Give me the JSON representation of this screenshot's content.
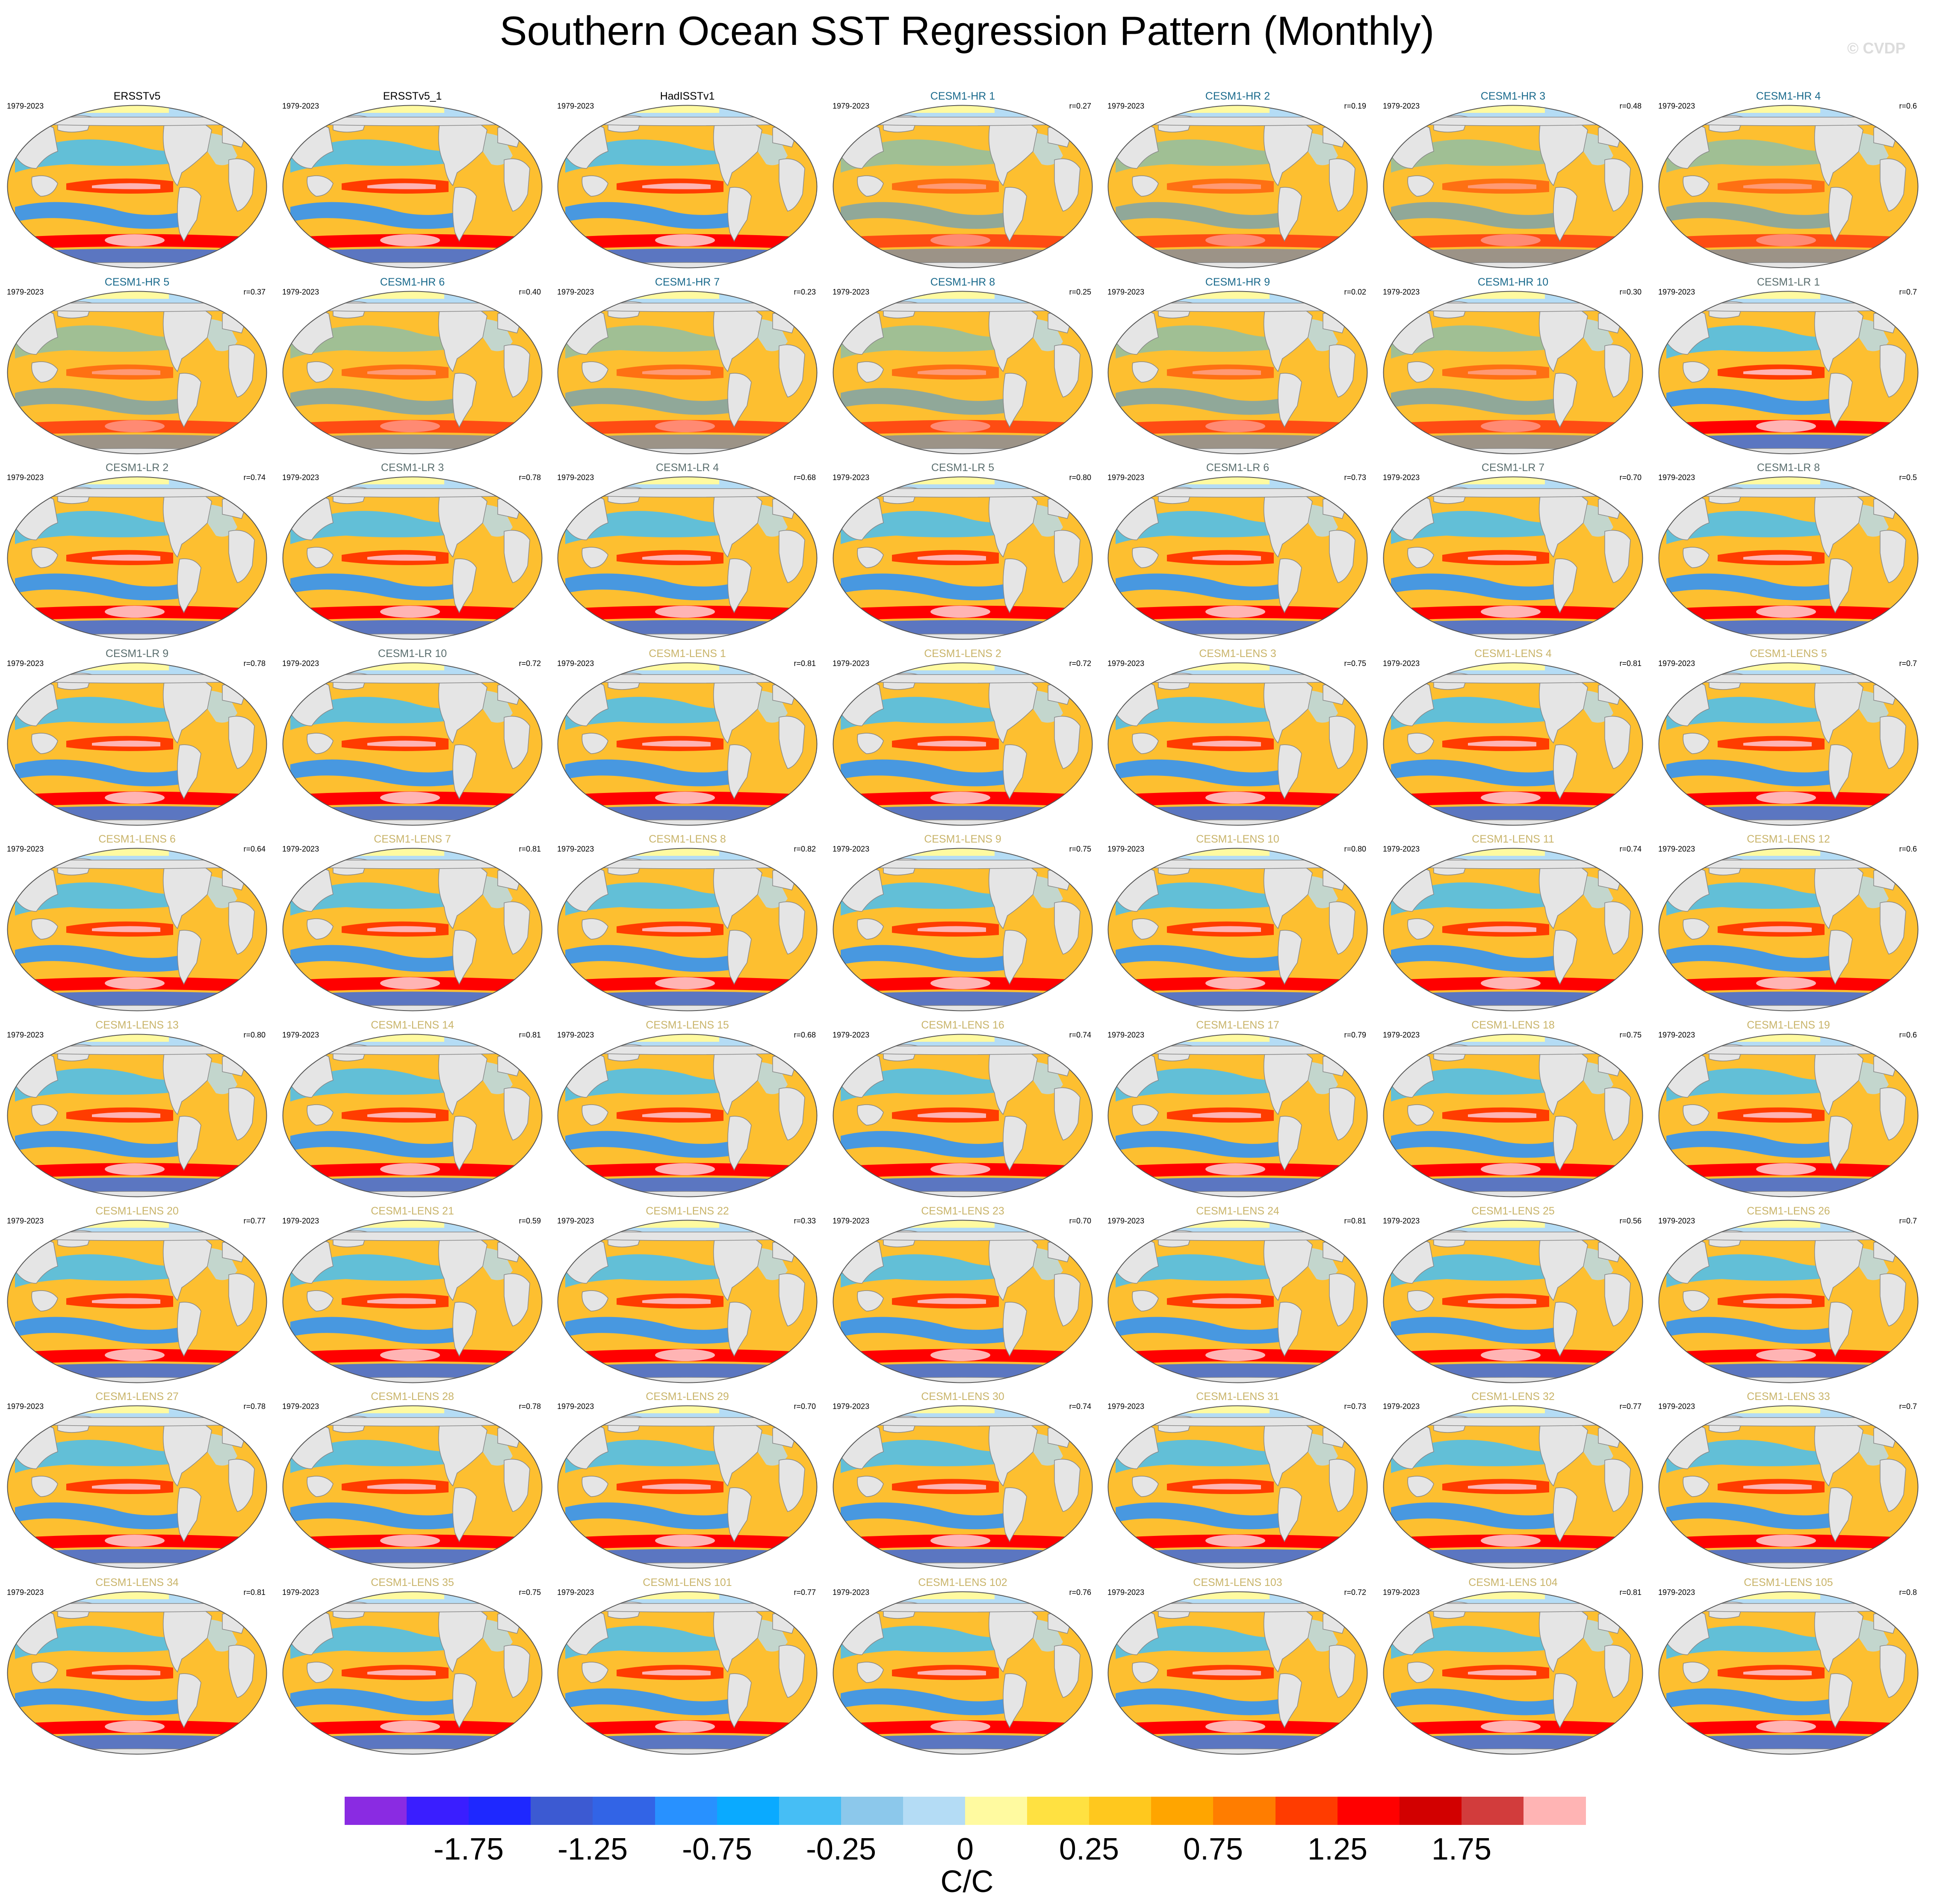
{
  "title": "Southern Ocean SST Regression Pattern (Monthly)",
  "watermark": "© CVDP",
  "period": "1979-2023",
  "title_colors": {
    "obs": "#000000",
    "hr": "#1a6a8c",
    "lr": "#5a6e6e",
    "lens": "#c9b46a"
  },
  "colors": {
    "ocean_base": "#fdbf30",
    "land": "#e5e5e5",
    "land_border": "#888888"
  },
  "panels": [
    {
      "name": "ERSSTv5",
      "group": "obs",
      "r": ""
    },
    {
      "name": "ERSSTv5_1",
      "group": "obs",
      "r": ""
    },
    {
      "name": "HadISSTv1",
      "group": "obs",
      "r": ""
    },
    {
      "name": "CESM1-HR 1",
      "group": "hr",
      "r": "r=0.27"
    },
    {
      "name": "CESM1-HR 2",
      "group": "hr",
      "r": "r=0.19"
    },
    {
      "name": "CESM1-HR 3",
      "group": "hr",
      "r": "r=0.48"
    },
    {
      "name": "CESM1-HR 4",
      "group": "hr",
      "r": "r=0.6"
    },
    {
      "name": "CESM1-HR 5",
      "group": "hr",
      "r": "r=0.37"
    },
    {
      "name": "CESM1-HR 6",
      "group": "hr",
      "r": "r=0.40"
    },
    {
      "name": "CESM1-HR 7",
      "group": "hr",
      "r": "r=0.23"
    },
    {
      "name": "CESM1-HR 8",
      "group": "hr",
      "r": "r=0.25"
    },
    {
      "name": "CESM1-HR 9",
      "group": "hr",
      "r": "r=0.02"
    },
    {
      "name": "CESM1-HR 10",
      "group": "hr",
      "r": "r=0.30"
    },
    {
      "name": "CESM1-LR 1",
      "group": "lr",
      "r": "r=0.7"
    },
    {
      "name": "CESM1-LR 2",
      "group": "lr",
      "r": "r=0.74"
    },
    {
      "name": "CESM1-LR 3",
      "group": "lr",
      "r": "r=0.78"
    },
    {
      "name": "CESM1-LR 4",
      "group": "lr",
      "r": "r=0.68"
    },
    {
      "name": "CESM1-LR 5",
      "group": "lr",
      "r": "r=0.80"
    },
    {
      "name": "CESM1-LR 6",
      "group": "lr",
      "r": "r=0.73"
    },
    {
      "name": "CESM1-LR 7",
      "group": "lr",
      "r": "r=0.70"
    },
    {
      "name": "CESM1-LR 8",
      "group": "lr",
      "r": "r=0.5"
    },
    {
      "name": "CESM1-LR 9",
      "group": "lr",
      "r": "r=0.78"
    },
    {
      "name": "CESM1-LR 10",
      "group": "lr",
      "r": "r=0.72"
    },
    {
      "name": "CESM1-LENS 1",
      "group": "lens",
      "r": "r=0.81"
    },
    {
      "name": "CESM1-LENS 2",
      "group": "lens",
      "r": "r=0.72"
    },
    {
      "name": "CESM1-LENS 3",
      "group": "lens",
      "r": "r=0.75"
    },
    {
      "name": "CESM1-LENS 4",
      "group": "lens",
      "r": "r=0.81"
    },
    {
      "name": "CESM1-LENS 5",
      "group": "lens",
      "r": "r=0.7"
    },
    {
      "name": "CESM1-LENS 6",
      "group": "lens",
      "r": "r=0.64"
    },
    {
      "name": "CESM1-LENS 7",
      "group": "lens",
      "r": "r=0.81"
    },
    {
      "name": "CESM1-LENS 8",
      "group": "lens",
      "r": "r=0.82"
    },
    {
      "name": "CESM1-LENS 9",
      "group": "lens",
      "r": "r=0.75"
    },
    {
      "name": "CESM1-LENS 10",
      "group": "lens",
      "r": "r=0.80"
    },
    {
      "name": "CESM1-LENS 11",
      "group": "lens",
      "r": "r=0.74"
    },
    {
      "name": "CESM1-LENS 12",
      "group": "lens",
      "r": "r=0.6"
    },
    {
      "name": "CESM1-LENS 13",
      "group": "lens",
      "r": "r=0.80"
    },
    {
      "name": "CESM1-LENS 14",
      "group": "lens",
      "r": "r=0.81"
    },
    {
      "name": "CESM1-LENS 15",
      "group": "lens",
      "r": "r=0.68"
    },
    {
      "name": "CESM1-LENS 16",
      "group": "lens",
      "r": "r=0.74"
    },
    {
      "name": "CESM1-LENS 17",
      "group": "lens",
      "r": "r=0.79"
    },
    {
      "name": "CESM1-LENS 18",
      "group": "lens",
      "r": "r=0.75"
    },
    {
      "name": "CESM1-LENS 19",
      "group": "lens",
      "r": "r=0.6"
    },
    {
      "name": "CESM1-LENS 20",
      "group": "lens",
      "r": "r=0.77"
    },
    {
      "name": "CESM1-LENS 21",
      "group": "lens",
      "r": "r=0.59"
    },
    {
      "name": "CESM1-LENS 22",
      "group": "lens",
      "r": "r=0.33"
    },
    {
      "name": "CESM1-LENS 23",
      "group": "lens",
      "r": "r=0.70"
    },
    {
      "name": "CESM1-LENS 24",
      "group": "lens",
      "r": "r=0.81"
    },
    {
      "name": "CESM1-LENS 25",
      "group": "lens",
      "r": "r=0.56"
    },
    {
      "name": "CESM1-LENS 26",
      "group": "lens",
      "r": "r=0.7"
    },
    {
      "name": "CESM1-LENS 27",
      "group": "lens",
      "r": "r=0.78"
    },
    {
      "name": "CESM1-LENS 28",
      "group": "lens",
      "r": "r=0.78"
    },
    {
      "name": "CESM1-LENS 29",
      "group": "lens",
      "r": "r=0.70"
    },
    {
      "name": "CESM1-LENS 30",
      "group": "lens",
      "r": "r=0.74"
    },
    {
      "name": "CESM1-LENS 31",
      "group": "lens",
      "r": "r=0.73"
    },
    {
      "name": "CESM1-LENS 32",
      "group": "lens",
      "r": "r=0.77"
    },
    {
      "name": "CESM1-LENS 33",
      "group": "lens",
      "r": "r=0.7"
    },
    {
      "name": "CESM1-LENS 34",
      "group": "lens",
      "r": "r=0.81"
    },
    {
      "name": "CESM1-LENS 35",
      "group": "lens",
      "r": "r=0.75"
    },
    {
      "name": "CESM1-LENS 101",
      "group": "lens",
      "r": "r=0.77"
    },
    {
      "name": "CESM1-LENS 102",
      "group": "lens",
      "r": "r=0.76"
    },
    {
      "name": "CESM1-LENS 103",
      "group": "lens",
      "r": "r=0.72"
    },
    {
      "name": "CESM1-LENS 104",
      "group": "lens",
      "r": "r=0.81"
    },
    {
      "name": "CESM1-LENS 105",
      "group": "lens",
      "r": "r=0.8"
    }
  ],
  "colorbar": {
    "colors": [
      "#8a2be2",
      "#3a1eff",
      "#1e28ff",
      "#3c5ad2",
      "#3264e6",
      "#2891ff",
      "#0aaaff",
      "#46bef5",
      "#8cc8eb",
      "#b4dcf5",
      "#fffaa0",
      "#ffe141",
      "#ffc81e",
      "#ffa500",
      "#ff7d00",
      "#ff3c00",
      "#ff0000",
      "#d20000",
      "#d23c3c",
      "#ffb4b4"
    ],
    "tick_labels": [
      "-1.75",
      "-1.25",
      "-0.75",
      "-0.25",
      "0",
      "0.25",
      "0.75",
      "1.25",
      "1.75"
    ],
    "units": "C/C"
  }
}
